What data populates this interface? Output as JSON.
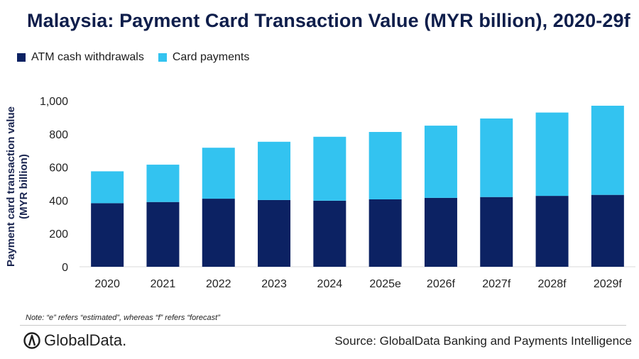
{
  "header": {
    "title": "Malaysia: Payment Card Transaction Value (MYR billion), 2020-29f"
  },
  "colors": {
    "atm": "#0c2263",
    "card": "#33c3f0",
    "axis_text": "#222222",
    "grid": "#d9d9d9"
  },
  "chart_data": {
    "type": "bar",
    "stacked": true,
    "title": "Malaysia: Payment Card Transaction Value (MYR billion), 2020-29f",
    "xlabel": "",
    "ylabel": "Payment card transaction value (MYR billion)",
    "ylabel_lines": [
      "Payment card transaction value",
      "(MYR billion)"
    ],
    "ylim": [
      0,
      1000
    ],
    "yticks": [
      0,
      200,
      400,
      600,
      800,
      1000
    ],
    "ytick_labels": [
      "0",
      "200",
      "400",
      "600",
      "800",
      "1,000"
    ],
    "grid": false,
    "legend_position": "top-left",
    "categories": [
      "2020",
      "2021",
      "2022",
      "2023",
      "2024",
      "2025e",
      "2026f",
      "2027f",
      "2028f",
      "2029f"
    ],
    "series": [
      {
        "name": "ATM cash withdrawals",
        "values": [
          383,
          390,
          410,
          402,
          398,
          406,
          415,
          420,
          427,
          433
        ]
      },
      {
        "name": "Card payments",
        "values": [
          192,
          225,
          307,
          351,
          385,
          406,
          435,
          473,
          502,
          537
        ]
      }
    ]
  },
  "footer": {
    "note": "Note: “e” refers “estimated”, whereas “f” refers “forecast”",
    "logo_text": "GlobalData.",
    "source": "Source: GlobalData Banking and Payments Intelligence"
  }
}
